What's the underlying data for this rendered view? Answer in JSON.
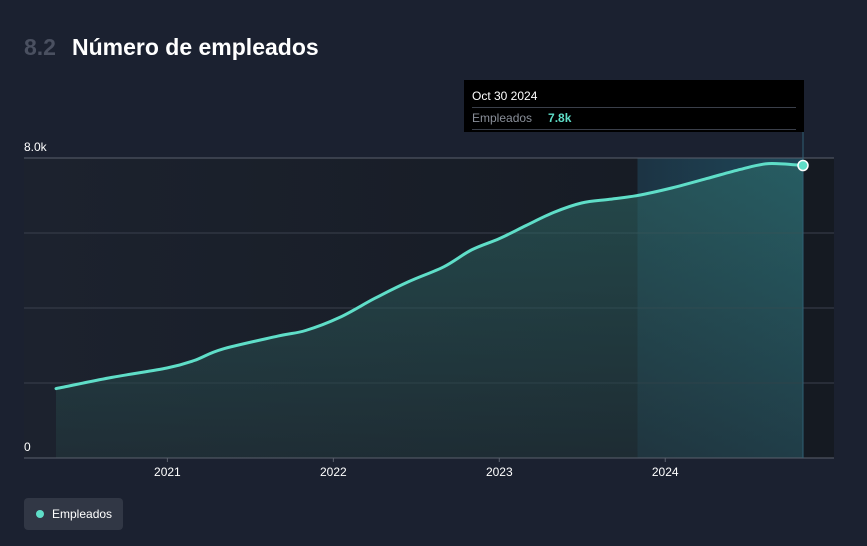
{
  "header": {
    "section_number": "8.2",
    "title": "Número de empleados"
  },
  "tooltip": {
    "date": "Oct 30 2024",
    "series_name": "Empleados",
    "value": "7.8k"
  },
  "legend": {
    "label": "Empleados",
    "color": "#5fdec8"
  },
  "colors": {
    "line": "#5fdec8",
    "background": "#1b2130",
    "highlight": "#1e4a5c"
  },
  "chart_data": {
    "type": "area",
    "ylim": [
      0,
      8000
    ],
    "y_tick_labels": [
      "8.0k",
      "0"
    ],
    "x_tick_labels": [
      "2021",
      "2022",
      "2023",
      "2024"
    ],
    "x_range": [
      "2020-05-01",
      "2024-10-30"
    ],
    "forecast_start": "2023-11-01",
    "grid": true,
    "series": [
      {
        "name": "Empleados",
        "x": [
          "2020-05-01",
          "2020-09-01",
          "2020-12-31",
          "2021-03-01",
          "2021-05-01",
          "2021-09-01",
          "2021-11-01",
          "2022-01-15",
          "2022-04-01",
          "2022-06-15",
          "2022-09-01",
          "2022-11-01",
          "2023-01-01",
          "2023-03-01",
          "2023-05-01",
          "2023-07-01",
          "2023-09-01",
          "2023-11-01",
          "2024-01-15",
          "2024-04-01",
          "2024-06-15",
          "2024-08-15",
          "2024-10-30"
        ],
        "values": [
          1850,
          2150,
          2400,
          2600,
          2900,
          3250,
          3400,
          3750,
          4250,
          4700,
          5100,
          5550,
          5850,
          6200,
          6550,
          6800,
          6900,
          7000,
          7200,
          7450,
          7700,
          7850,
          7800
        ]
      }
    ]
  }
}
